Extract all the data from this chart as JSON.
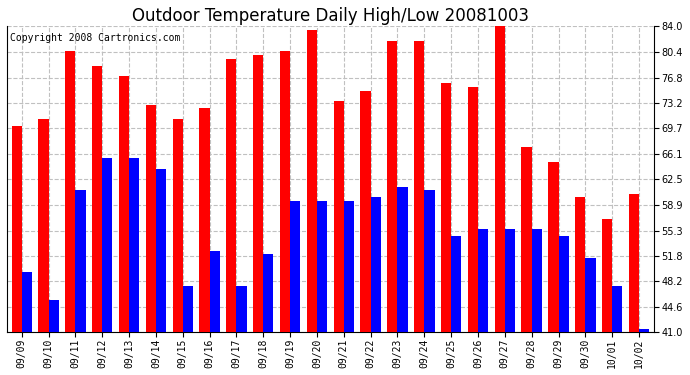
{
  "title": "Outdoor Temperature Daily High/Low 20081003",
  "copyright": "Copyright 2008 Cartronics.com",
  "categories": [
    "09/09",
    "09/10",
    "09/11",
    "09/12",
    "09/13",
    "09/14",
    "09/15",
    "09/16",
    "09/17",
    "09/18",
    "09/19",
    "09/20",
    "09/21",
    "09/22",
    "09/23",
    "09/24",
    "09/25",
    "09/26",
    "09/27",
    "09/28",
    "09/29",
    "09/30",
    "10/01",
    "10/02"
  ],
  "highs": [
    70.0,
    71.0,
    80.5,
    78.5,
    77.0,
    73.0,
    71.0,
    72.5,
    79.5,
    80.0,
    80.5,
    83.5,
    73.5,
    75.0,
    82.0,
    82.0,
    76.0,
    75.5,
    84.5,
    67.0,
    65.0,
    60.0,
    57.0,
    60.5
  ],
  "lows": [
    49.5,
    45.5,
    61.0,
    65.5,
    65.5,
    64.0,
    47.5,
    52.5,
    47.5,
    52.0,
    59.5,
    59.5,
    59.5,
    60.0,
    61.5,
    61.0,
    54.5,
    55.5,
    55.5,
    55.5,
    54.5,
    51.5,
    47.5,
    41.5
  ],
  "high_color": "#ff0000",
  "low_color": "#0000ff",
  "bg_color": "#ffffff",
  "grid_color": "#c0c0c0",
  "yticks": [
    41.0,
    44.6,
    48.2,
    51.8,
    55.3,
    58.9,
    62.5,
    66.1,
    69.7,
    73.2,
    76.8,
    80.4,
    84.0
  ],
  "ylim_min": 41.0,
  "ylim_max": 84.0,
  "title_fontsize": 12,
  "copyright_fontsize": 7,
  "tick_fontsize": 7,
  "bar_width": 0.38
}
